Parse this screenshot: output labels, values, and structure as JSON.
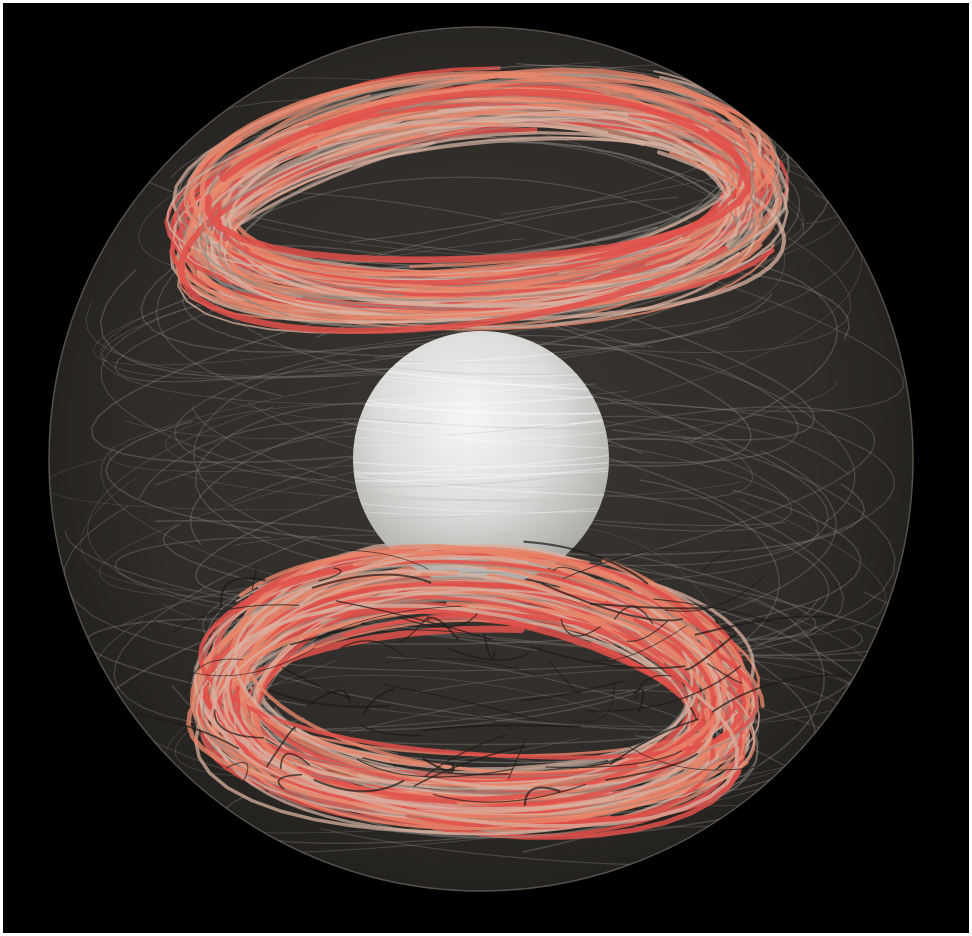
{
  "scene": {
    "subject": "magnetic-field-lines-in-spherical-shell",
    "colors": {
      "background": "#000000",
      "outer_shell": "#33302c",
      "inner_core": "#e4e4e2",
      "field_line_warm": "#e8866a",
      "field_line_hot": "#e0504a",
      "field_line_pale": "#d8b0a0",
      "field_line_grey": "#8c8680"
    }
  }
}
